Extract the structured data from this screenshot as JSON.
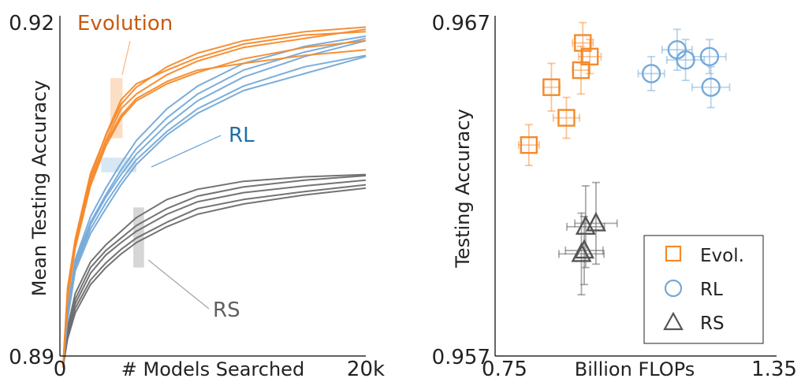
{
  "chart_data": [
    {
      "type": "line",
      "ylabel": "Mean Testing Accuracy",
      "xlabel": "# Models Searched",
      "xlim": [
        0,
        20000
      ],
      "ylim": [
        0.89,
        0.92
      ],
      "x_ticks": [
        "0",
        "20k"
      ],
      "y_ticks": [
        "0.89",
        "0.92"
      ],
      "grid": false,
      "series": [
        {
          "name": "Evolution",
          "color": "#f58a2b",
          "label_color": "#c85a10",
          "runs": [
            [
              [
                200,
                0.889
              ],
              [
                500,
                0.896
              ],
              [
                1000,
                0.9003
              ],
              [
                2000,
                0.9061
              ],
              [
                3000,
                0.9094
              ],
              [
                4000,
                0.9122
              ],
              [
                5000,
                0.9137
              ],
              [
                7000,
                0.9155
              ],
              [
                9000,
                0.9167
              ],
              [
                12000,
                0.9178
              ],
              [
                16000,
                0.9186
              ],
              [
                20000,
                0.919
              ]
            ],
            [
              [
                200,
                0.889
              ],
              [
                500,
                0.8955
              ],
              [
                1000,
                0.8998
              ],
              [
                2000,
                0.9055
              ],
              [
                3000,
                0.909
              ],
              [
                4000,
                0.9118
              ],
              [
                5000,
                0.9131
              ],
              [
                7000,
                0.9148
              ],
              [
                9000,
                0.916
              ],
              [
                12000,
                0.9172
              ],
              [
                16000,
                0.918
              ],
              [
                20000,
                0.9188
              ]
            ],
            [
              [
                200,
                0.889
              ],
              [
                500,
                0.8958
              ],
              [
                1000,
                0.9
              ],
              [
                2000,
                0.9058
              ],
              [
                3000,
                0.9095
              ],
              [
                4000,
                0.9126
              ],
              [
                5000,
                0.914
              ],
              [
                7000,
                0.9152
              ],
              [
                9000,
                0.9163
              ],
              [
                12000,
                0.9175
              ],
              [
                16000,
                0.9183
              ],
              [
                20000,
                0.9186
              ]
            ],
            [
              [
                200,
                0.889
              ],
              [
                500,
                0.895
              ],
              [
                1000,
                0.8995
              ],
              [
                2000,
                0.905
              ],
              [
                3000,
                0.9085
              ],
              [
                4000,
                0.911
              ],
              [
                5000,
                0.9125
              ],
              [
                7000,
                0.914
              ],
              [
                9000,
                0.915
              ],
              [
                12000,
                0.9162
              ],
              [
                16000,
                0.9172
              ],
              [
                20000,
                0.9178
              ]
            ],
            [
              [
                200,
                0.889
              ],
              [
                500,
                0.8952
              ],
              [
                1000,
                0.8996
              ],
              [
                2000,
                0.9052
              ],
              [
                3000,
                0.9088
              ],
              [
                4000,
                0.9112
              ],
              [
                5000,
                0.9127
              ],
              [
                7000,
                0.9142
              ],
              [
                9000,
                0.9152
              ],
              [
                12000,
                0.9158
              ],
              [
                16000,
                0.9165
              ],
              [
                20000,
                0.917
              ]
            ]
          ]
        },
        {
          "name": "RL",
          "color": "#74a9d8",
          "label_color": "#1f6fa8",
          "runs": [
            [
              [
                200,
                0.889
              ],
              [
                500,
                0.894
              ],
              [
                1000,
                0.8985
              ],
              [
                2000,
                0.9023
              ],
              [
                3000,
                0.9048
              ],
              [
                4000,
                0.907
              ],
              [
                5000,
                0.909
              ],
              [
                7000,
                0.9118
              ],
              [
                9000,
                0.9138
              ],
              [
                12000,
                0.9158
              ],
              [
                16000,
                0.9173
              ],
              [
                20000,
                0.9182
              ]
            ],
            [
              [
                200,
                0.889
              ],
              [
                500,
                0.8942
              ],
              [
                1000,
                0.8982
              ],
              [
                2000,
                0.9018
              ],
              [
                3000,
                0.9042
              ],
              [
                4000,
                0.9064
              ],
              [
                5000,
                0.9083
              ],
              [
                7000,
                0.911
              ],
              [
                9000,
                0.9131
              ],
              [
                12000,
                0.9152
              ],
              [
                16000,
                0.9168
              ],
              [
                20000,
                0.918
              ]
            ],
            [
              [
                200,
                0.889
              ],
              [
                500,
                0.8938
              ],
              [
                1000,
                0.898
              ],
              [
                2000,
                0.9016
              ],
              [
                3000,
                0.904
              ],
              [
                4000,
                0.906
              ],
              [
                5000,
                0.9078
              ],
              [
                7000,
                0.9104
              ],
              [
                9000,
                0.9125
              ],
              [
                12000,
                0.9146
              ],
              [
                16000,
                0.9164
              ],
              [
                20000,
                0.9178
              ]
            ],
            [
              [
                200,
                0.889
              ],
              [
                500,
                0.8935
              ],
              [
                1000,
                0.8978
              ],
              [
                2000,
                0.9012
              ],
              [
                3000,
                0.9035
              ],
              [
                4000,
                0.9055
              ],
              [
                5000,
                0.9073
              ],
              [
                7000,
                0.9098
              ],
              [
                9000,
                0.9118
              ],
              [
                12000,
                0.9138
              ],
              [
                16000,
                0.9155
              ],
              [
                20000,
                0.9165
              ]
            ],
            [
              [
                200,
                0.889
              ],
              [
                500,
                0.8932
              ],
              [
                1000,
                0.8975
              ],
              [
                2000,
                0.9008
              ],
              [
                3000,
                0.903
              ],
              [
                4000,
                0.9051
              ],
              [
                5000,
                0.9069
              ],
              [
                7000,
                0.9095
              ],
              [
                9000,
                0.9114
              ],
              [
                12000,
                0.9134
              ],
              [
                16000,
                0.9149
              ],
              [
                20000,
                0.9164
              ]
            ]
          ]
        },
        {
          "name": "RS",
          "color": "#6b6b6b",
          "label_color": "#5f5f5f",
          "runs": [
            [
              [
                200,
                0.889
              ],
              [
                500,
                0.8925
              ],
              [
                1000,
                0.8955
              ],
              [
                2000,
                0.8983
              ],
              [
                3000,
                0.8998
              ],
              [
                4000,
                0.901
              ],
              [
                5000,
                0.9022
              ],
              [
                7000,
                0.9038
              ],
              [
                9000,
                0.9047
              ],
              [
                12000,
                0.9054
              ],
              [
                16000,
                0.9058
              ],
              [
                20000,
                0.906
              ]
            ],
            [
              [
                200,
                0.889
              ],
              [
                500,
                0.8922
              ],
              [
                1000,
                0.895
              ],
              [
                2000,
                0.8978
              ],
              [
                3000,
                0.8993
              ],
              [
                4000,
                0.9004
              ],
              [
                5000,
                0.9015
              ],
              [
                7000,
                0.903
              ],
              [
                9000,
                0.9041
              ],
              [
                12000,
                0.9049
              ],
              [
                16000,
                0.9055
              ],
              [
                20000,
                0.9059
              ]
            ],
            [
              [
                200,
                0.889
              ],
              [
                500,
                0.892
              ],
              [
                1000,
                0.8946
              ],
              [
                2000,
                0.8973
              ],
              [
                3000,
                0.8989
              ],
              [
                4000,
                0.9
              ],
              [
                5000,
                0.901
              ],
              [
                7000,
                0.9025
              ],
              [
                9000,
                0.9036
              ],
              [
                12000,
                0.9044
              ],
              [
                16000,
                0.905
              ],
              [
                20000,
                0.9055
              ]
            ],
            [
              [
                200,
                0.889
              ],
              [
                500,
                0.8917
              ],
              [
                1000,
                0.8942
              ],
              [
                2000,
                0.8967
              ],
              [
                3000,
                0.8982
              ],
              [
                4000,
                0.8994
              ],
              [
                5000,
                0.9004
              ],
              [
                7000,
                0.9018
              ],
              [
                9000,
                0.903
              ],
              [
                12000,
                0.9038
              ],
              [
                16000,
                0.9045
              ],
              [
                20000,
                0.9051
              ]
            ],
            [
              [
                200,
                0.889
              ],
              [
                500,
                0.8915
              ],
              [
                1000,
                0.8938
              ],
              [
                2000,
                0.8963
              ],
              [
                3000,
                0.8978
              ],
              [
                4000,
                0.899
              ],
              [
                5000,
                0.9
              ],
              [
                7000,
                0.9014
              ],
              [
                9000,
                0.9025
              ],
              [
                12000,
                0.9034
              ],
              [
                16000,
                0.9042
              ],
              [
                20000,
                0.9048
              ]
            ]
          ]
        }
      ],
      "bands": [
        {
          "series": "Evolution",
          "x": [
            3300,
            4100
          ],
          "y": [
            0.9092,
            0.9145
          ]
        },
        {
          "series": "RL",
          "x": [
            2700,
            5000
          ],
          "y": [
            0.9062,
            0.9075
          ]
        },
        {
          "series": "RS",
          "x": [
            4800,
            5500
          ],
          "y": [
            0.8978,
            0.9031
          ]
        }
      ]
    },
    {
      "type": "scatter",
      "ylabel": "Testing Accuracy",
      "xlabel": "Billion FLOPs",
      "xlim": [
        0.75,
        1.35
      ],
      "ylim": [
        0.957,
        0.967
      ],
      "x_ticks": [
        "0.75",
        "1.35"
      ],
      "y_ticks": [
        "0.957",
        "0.967"
      ],
      "grid": false,
      "legend": {
        "placement": "bottom-right",
        "entries": [
          "Evol.",
          "RL",
          "RS"
        ]
      },
      "series": [
        {
          "name": "Evol.",
          "marker": "square",
          "color": "#f58a2b",
          "points": [
            {
              "x": 0.822,
              "y": 0.9632,
              "xerr": 0.022,
              "yerr": 0.0006
            },
            {
              "x": 0.87,
              "y": 0.9649,
              "xerr": 0.018,
              "yerr": 0.0007
            },
            {
              "x": 0.902,
              "y": 0.964,
              "xerr": 0.028,
              "yerr": 0.0006
            },
            {
              "x": 0.933,
              "y": 0.9654,
              "xerr": 0.018,
              "yerr": 0.0007
            },
            {
              "x": 0.937,
              "y": 0.9662,
              "xerr": 0.022,
              "yerr": 0.0006
            },
            {
              "x": 0.952,
              "y": 0.9658,
              "xerr": 0.024,
              "yerr": 0.0005
            }
          ]
        },
        {
          "name": "RL",
          "marker": "circle",
          "color": "#74a9d8",
          "points": [
            {
              "x": 1.083,
              "y": 0.9653,
              "xerr": 0.028,
              "yerr": 0.0005
            },
            {
              "x": 1.138,
              "y": 0.966,
              "xerr": 0.032,
              "yerr": 0.0006
            },
            {
              "x": 1.156,
              "y": 0.9657,
              "xerr": 0.04,
              "yerr": 0.0006
            },
            {
              "x": 1.21,
              "y": 0.9649,
              "xerr": 0.04,
              "yerr": 0.0006
            },
            {
              "x": 1.207,
              "y": 0.9658,
              "xerr": 0.035,
              "yerr": 0.0005
            }
          ]
        },
        {
          "name": "RS",
          "marker": "triangle",
          "color": "#555555",
          "points": [
            {
              "x": 0.943,
              "y": 0.9608,
              "xerr": 0.04,
              "yerr": 0.0012
            },
            {
              "x": 0.965,
              "y": 0.9609,
              "xerr": 0.045,
              "yerr": 0.0012
            },
            {
              "x": 0.934,
              "y": 0.96,
              "xerr": 0.048,
              "yerr": 0.0012
            },
            {
              "x": 0.94,
              "y": 0.9601,
              "xerr": 0.04,
              "yerr": 0.001
            }
          ]
        }
      ]
    }
  ]
}
